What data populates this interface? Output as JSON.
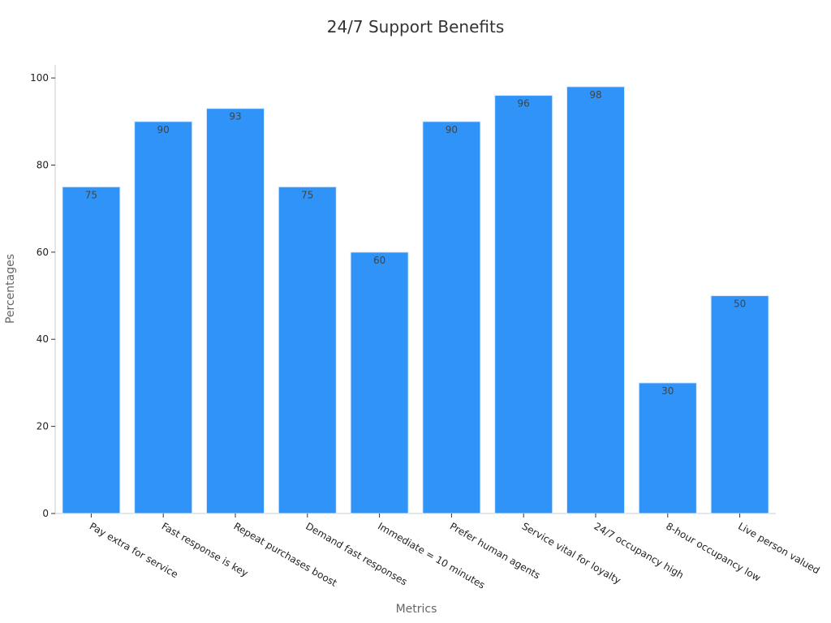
{
  "chart_data": {
    "type": "bar",
    "title": "24/7 Support Benefits",
    "xlabel": "Metrics",
    "ylabel": "Percentages",
    "categories": [
      "Pay extra for service",
      "Fast response is key",
      "Repeat purchases boost",
      "Demand fast responses",
      "Immediate = 10 minutes",
      "Prefer human agents",
      "Service vital for loyalty",
      "24/7 occupancy high",
      "8-hour occupancy low",
      "Live person valued"
    ],
    "values": [
      75,
      90,
      93,
      75,
      60,
      90,
      96,
      98,
      30,
      50
    ],
    "ylim": [
      0,
      103
    ],
    "yticks": [
      0,
      20,
      40,
      60,
      80,
      100
    ],
    "bar_color": "#2f93f7",
    "grid": false,
    "legend": "none",
    "data_labels": true
  }
}
